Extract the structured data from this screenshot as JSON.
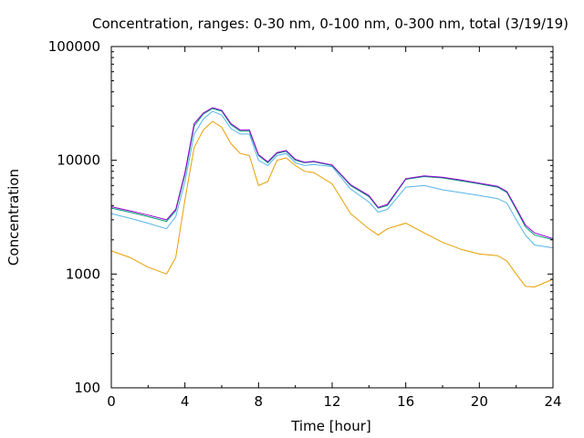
{
  "chart_data": {
    "type": "line",
    "title": "Concentration, ranges: 0-30 nm, 0-100 nm, 0-300 nm, total (3/19/19)",
    "xlabel": "Time [hour]",
    "ylabel": "Concentration",
    "xlim": [
      0,
      24
    ],
    "ylim": [
      100,
      100000
    ],
    "yscale": "log",
    "grid": false,
    "legend": "none",
    "x_ticks": [
      0,
      4,
      8,
      12,
      16,
      20,
      24
    ],
    "x_tick_labels": [
      "0",
      "4",
      "8",
      "12",
      "16",
      "20",
      "24"
    ],
    "y_ticks": [
      100,
      1000,
      10000,
      100000
    ],
    "y_tick_labels": [
      "100",
      "1000",
      "10000",
      "100000"
    ],
    "x": [
      0,
      1,
      2,
      3,
      3.5,
      4,
      4.5,
      5,
      5.5,
      6,
      6.5,
      7,
      7.5,
      8,
      8.5,
      9,
      9.5,
      10,
      10.5,
      11,
      12,
      13,
      14,
      14.5,
      15,
      16,
      17,
      18,
      19,
      20,
      21,
      21.5,
      22,
      22.5,
      23,
      24
    ],
    "series": [
      {
        "color": "#e69f00",
        "values": [
          1600,
          1400,
          1150,
          1000,
          1400,
          4500,
          13000,
          18500,
          22000,
          19500,
          14000,
          11500,
          11000,
          6000,
          6500,
          10000,
          10500,
          9000,
          8000,
          7800,
          6200,
          3400,
          2500,
          2200,
          2500,
          2800,
          2300,
          1900,
          1650,
          1500,
          1450,
          1300,
          1000,
          780,
          770,
          900
        ]
      },
      {
        "color": "#56b4e9",
        "values": [
          3400,
          3100,
          2800,
          2500,
          3200,
          6500,
          17000,
          23000,
          27000,
          25000,
          19000,
          17000,
          17000,
          10000,
          9000,
          11000,
          11500,
          9500,
          9000,
          9200,
          8800,
          5600,
          4300,
          3500,
          3700,
          5800,
          6000,
          5500,
          5200,
          4900,
          4600,
          4200,
          3000,
          2200,
          1800,
          1700
        ]
      },
      {
        "color": "#009e73",
        "values": [
          3800,
          3500,
          3200,
          2900,
          3600,
          7500,
          20000,
          25500,
          28500,
          27000,
          20500,
          18000,
          18000,
          11000,
          9500,
          11500,
          12000,
          10000,
          9500,
          9700,
          9000,
          6000,
          4800,
          3800,
          4000,
          6800,
          7200,
          7000,
          6600,
          6200,
          5800,
          5200,
          3700,
          2600,
          2200,
          2000
        ]
      },
      {
        "color": "#9400d3",
        "values": [
          3900,
          3600,
          3300,
          3000,
          3700,
          7800,
          21000,
          26000,
          29000,
          27500,
          21000,
          18500,
          18500,
          11200,
          9700,
          11700,
          12200,
          10200,
          9600,
          9800,
          9100,
          6100,
          4900,
          3850,
          4100,
          6900,
          7300,
          7100,
          6700,
          6300,
          5900,
          5300,
          3800,
          2700,
          2300,
          2050
        ]
      }
    ]
  }
}
